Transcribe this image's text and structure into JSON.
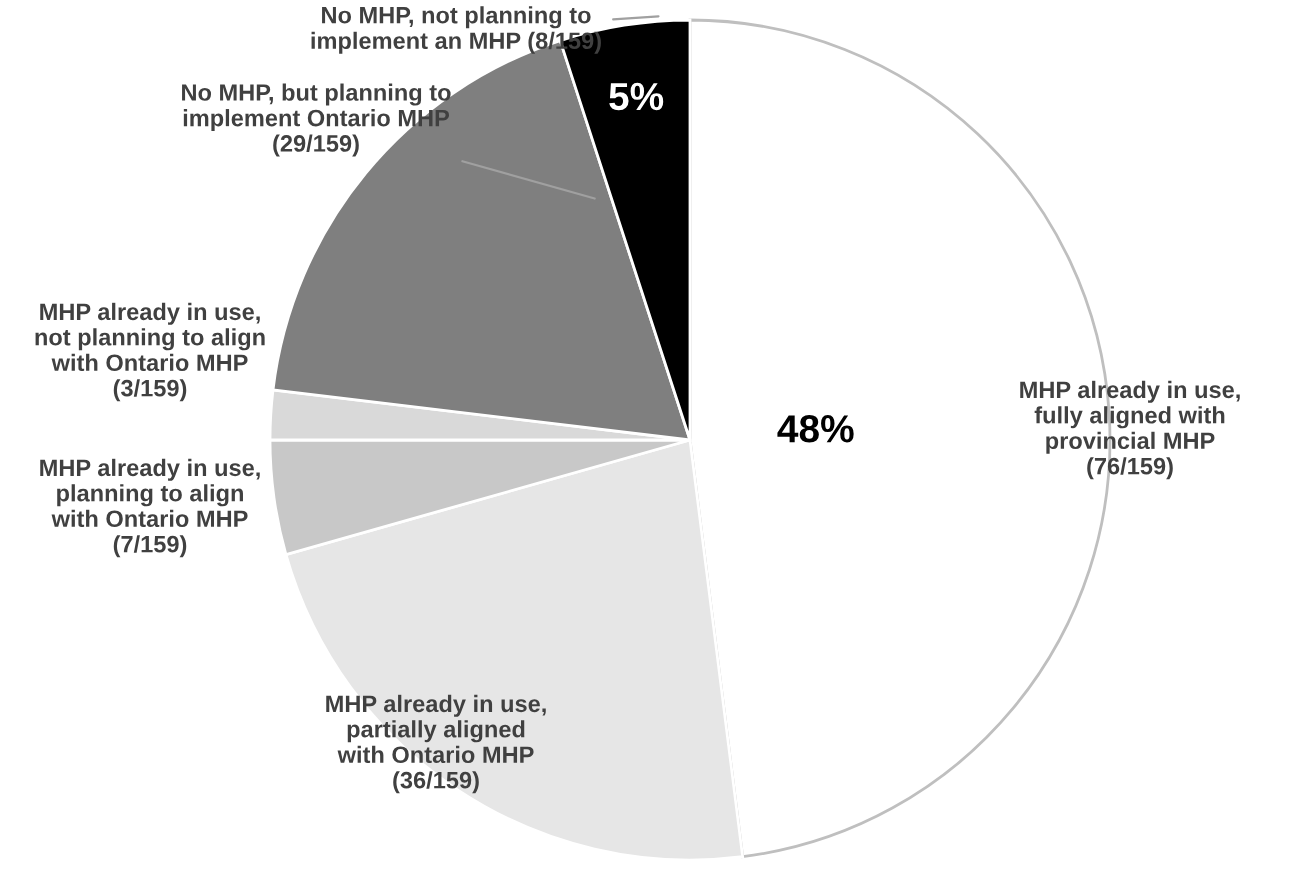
{
  "chart_data": {
    "type": "pie",
    "categories": [
      "MHP already in use,\nfully aligned with\nprovincial MHP\n(76/159)",
      "MHP already in use,\npartially aligned\nwith Ontario MHP\n(36/159)",
      "MHP already in use,\nplanning to align\nwith Ontario MHP\n(7/159)",
      "MHP already in use,\nnot planning to align\nwith Ontario MHP\n(3/159)",
      "No MHP, but planning to\nimplement Ontario MHP\n(29/159)",
      "No MHP, not planning to\nimplement an MHP (8/159)"
    ],
    "values": [
      48,
      22.6,
      4.4,
      1.9,
      18.1,
      5
    ],
    "colors": [
      "#ffffff",
      "#e6e6e6",
      "#c8c8c8",
      "#d9d9d9",
      "#7f7f7f",
      "#000000"
    ],
    "value_labels": [
      "48%",
      null,
      null,
      null,
      null,
      "5%"
    ]
  }
}
